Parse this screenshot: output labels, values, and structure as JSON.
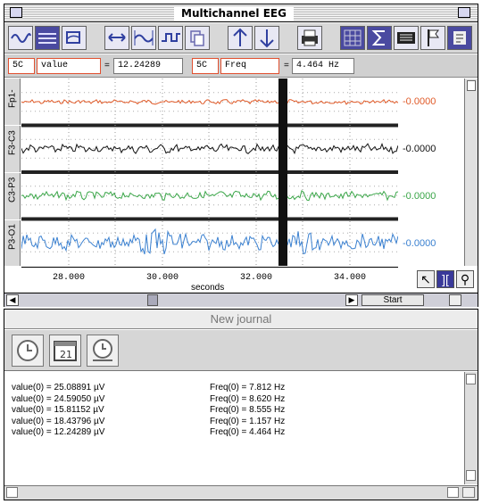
{
  "eeg": {
    "title": "Multichannel EEG",
    "measurement": {
      "left_ch": "5C",
      "left_func": "value",
      "left_val": "12.24289",
      "right_ch": "5C",
      "right_func": "Freq",
      "right_val": "4.464 Hz"
    },
    "channels": [
      {
        "label": "Fp1-",
        "value": "-0.0000",
        "color": "#e05a28"
      },
      {
        "label": "F3-C3",
        "value": "-0.0000",
        "color": "#111111"
      },
      {
        "label": "C3-P3",
        "value": "-0.0000",
        "color": "#3aa648"
      },
      {
        "label": "P3-O1",
        "value": "-0.0000",
        "color": "#3a80d0"
      }
    ],
    "time_axis": {
      "ticks": [
        "28.000",
        "30.000",
        "32.000",
        "34.000"
      ],
      "unit": "seconds"
    },
    "scroll": {
      "start_label": "Start"
    }
  },
  "journal": {
    "title": "New journal",
    "entries": [
      {
        "value": "value(0) = 25.08891 µV",
        "freq": "Freq(0) = 7.812 Hz"
      },
      {
        "value": "value(0) = 24.59050 µV",
        "freq": "Freq(0) = 8.620 Hz"
      },
      {
        "value": "value(0) = 15.81152 µV",
        "freq": "Freq(0) = 8.555 Hz"
      },
      {
        "value": "value(0) = 18.43796 µV",
        "freq": "Freq(0) = 1.157 Hz"
      },
      {
        "value": "value(0) = 12.24289 µV",
        "freq": "Freq(0) = 4.464 Hz"
      }
    ]
  }
}
